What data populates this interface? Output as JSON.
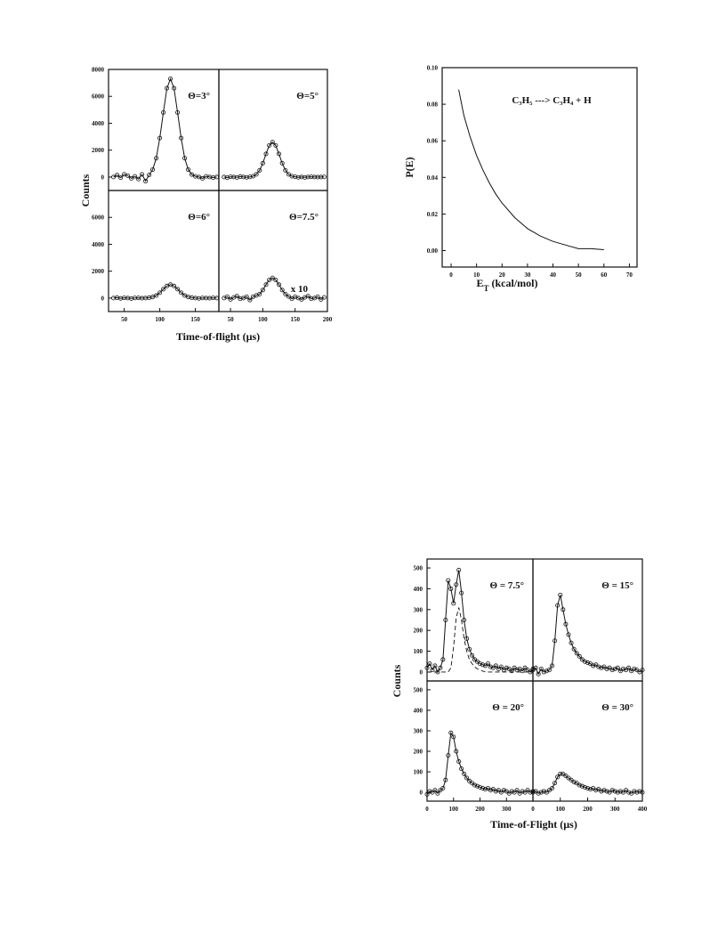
{
  "chart_data": [
    {
      "type": "panels",
      "ylabel": "Counts",
      "xlabel": "Time-of-flight (µs)",
      "panels": [
        {
          "label": "Θ=3°",
          "xlim": [
            28,
            183
          ],
          "ylim": [
            -1000,
            8000
          ],
          "yticks": [
            0,
            2000,
            4000,
            6000,
            8000
          ],
          "x": [
            35,
            40,
            45,
            50,
            55,
            60,
            65,
            70,
            75,
            80,
            85,
            90,
            95,
            100,
            105,
            110,
            115,
            120,
            125,
            130,
            135,
            140,
            145,
            150,
            155,
            160,
            165,
            170,
            175,
            180
          ],
          "series": [
            {
              "markers": true,
              "line": true,
              "values": [
                0,
                150,
                -50,
                200,
                100,
                -100,
                50,
                -150,
                200,
                -300,
                150,
                550,
                1400,
                2900,
                4800,
                6600,
                7300,
                6600,
                4800,
                2900,
                1400,
                550,
                180,
                50,
                0,
                -100,
                50,
                0,
                -50,
                0
              ]
            }
          ]
        },
        {
          "label": "Θ=5°",
          "xlim": [
            32,
            200
          ],
          "ylim": [
            -1000,
            8000
          ],
          "x": [
            40,
            45,
            50,
            55,
            60,
            65,
            70,
            75,
            80,
            85,
            90,
            95,
            100,
            105,
            110,
            115,
            120,
            125,
            130,
            135,
            140,
            145,
            150,
            155,
            160,
            165,
            170,
            175,
            180,
            185,
            190,
            195
          ],
          "series": [
            {
              "markers": true,
              "line": true,
              "values": [
                0,
                -50,
                20,
                0,
                -30,
                30,
                0,
                -20,
                10,
                60,
                200,
                500,
                1030,
                1720,
                2350,
                2600,
                2350,
                1720,
                1030,
                500,
                200,
                60,
                20,
                -20,
                0,
                -30,
                0,
                20,
                0,
                -10,
                0,
                10
              ]
            }
          ]
        },
        {
          "label": "Θ=6°",
          "xlim": [
            28,
            183
          ],
          "ylim": [
            -1000,
            8000
          ],
          "yticks": [
            0,
            2000,
            4000,
            6000
          ],
          "xticks": [
            50,
            100,
            150
          ],
          "x": [
            35,
            40,
            45,
            50,
            55,
            60,
            65,
            70,
            75,
            80,
            85,
            90,
            95,
            100,
            105,
            110,
            115,
            120,
            125,
            130,
            135,
            140,
            145,
            150,
            155,
            160,
            165,
            170,
            175,
            180
          ],
          "series": [
            {
              "markers": true,
              "line": true,
              "values": [
                0,
                30,
                -20,
                20,
                0,
                -30,
                10,
                20,
                -10,
                0,
                30,
                80,
                190,
                400,
                660,
                900,
                1000,
                900,
                660,
                400,
                190,
                80,
                30,
                0,
                -20,
                10,
                0,
                -10,
                20,
                0
              ]
            }
          ]
        },
        {
          "label": "Θ=7.5°",
          "annotation": "x 10",
          "xlim": [
            32,
            200
          ],
          "ylim": [
            -1000,
            8000
          ],
          "xticks": [
            50,
            100,
            150,
            200
          ],
          "x": [
            40,
            45,
            50,
            55,
            60,
            65,
            70,
            75,
            80,
            85,
            90,
            95,
            100,
            105,
            110,
            115,
            120,
            125,
            130,
            135,
            140,
            145,
            150,
            155,
            160,
            165,
            170,
            175,
            180,
            185,
            190,
            195
          ],
          "series": [
            {
              "markers": true,
              "line": true,
              "values": [
                0,
                100,
                -100,
                50,
                150,
                -50,
                0,
                100,
                -150,
                100,
                200,
                300,
                600,
                1000,
                1350,
                1500,
                1350,
                1000,
                600,
                300,
                120,
                -50,
                100,
                0,
                -100,
                50,
                150,
                -50,
                0,
                100,
                -100,
                50
              ]
            }
          ]
        }
      ]
    },
    {
      "type": "line",
      "ylabel": "P(E)",
      "xlabel": [
        "E",
        "T",
        " (kcal/mol)"
      ],
      "annotation": "C₃H₅ ---> C₃H₄ + H",
      "xlim": [
        -3.5,
        73
      ],
      "ylim": [
        -0.009,
        0.1
      ],
      "xticks": [
        0,
        10,
        20,
        30,
        40,
        50,
        60,
        70
      ],
      "yticks": [
        {
          "value": 0,
          "label": "0.00"
        },
        {
          "value": 0.02,
          "label": "0.02"
        },
        {
          "value": 0.04,
          "label": "0.04"
        },
        {
          "value": 0.06,
          "label": "0.06"
        },
        {
          "value": 0.08,
          "label": "0.08"
        },
        {
          "value": 0.1,
          "label": "0.10"
        }
      ],
      "x": [
        3,
        5,
        7.5,
        10,
        12.5,
        15,
        17.5,
        20,
        25,
        30,
        35,
        40,
        45,
        50,
        55,
        60
      ],
      "values": [
        0.088,
        0.074,
        0.062,
        0.052,
        0.044,
        0.037,
        0.031,
        0.026,
        0.018,
        0.012,
        0.008,
        0.005,
        0.003,
        0.001,
        0.001,
        0.0005
      ]
    },
    {
      "type": "panels",
      "ylabel": "Counts",
      "xlabel": "Time-of-Flight (µs)",
      "x": [
        0,
        10,
        20,
        30,
        40,
        50,
        60,
        70,
        80,
        90,
        100,
        110,
        120,
        130,
        140,
        150,
        160,
        170,
        180,
        190,
        200,
        210,
        220,
        230,
        240,
        250,
        260,
        270,
        280,
        290,
        300,
        310,
        320,
        330,
        340,
        350,
        360,
        370,
        380,
        390,
        400
      ],
      "panels": [
        {
          "label": "Θ = 7.5°",
          "xlim": [
            0,
            400
          ],
          "ylim": [
            -43,
            543
          ],
          "yticks": [
            0,
            100,
            200,
            300,
            400,
            500
          ],
          "series": [
            {
              "markers": true,
              "line": true,
              "values": [
                20,
                40,
                10,
                30,
                0,
                20,
                60,
                250,
                440,
                400,
                330,
                420,
                490,
                380,
                250,
                160,
                110,
                80,
                60,
                50,
                40,
                35,
                30,
                40,
                25,
                20,
                30,
                15,
                25,
                10,
                20,
                15,
                5,
                20,
                10,
                15,
                5,
                20,
                10,
                0,
                15
              ]
            },
            {
              "dash": true,
              "values": [
                0,
                0,
                0,
                0,
                0,
                0,
                0,
                0,
                0,
                20,
                120,
                260,
                310,
                250,
                160,
                100,
                60,
                40,
                25,
                15,
                10,
                5,
                0,
                0,
                0,
                0,
                0,
                0,
                0,
                0,
                0,
                0,
                0,
                0,
                0,
                0,
                0,
                0,
                0,
                0,
                0
              ]
            }
          ]
        },
        {
          "label": "Θ = 15°",
          "xlim": [
            0,
            400
          ],
          "ylim": [
            -43,
            543
          ],
          "series": [
            {
              "markers": true,
              "line": true,
              "values": [
                10,
                20,
                -10,
                15,
                0,
                5,
                10,
                30,
                150,
                320,
                370,
                300,
                230,
                180,
                140,
                110,
                90,
                75,
                60,
                50,
                45,
                40,
                30,
                35,
                25,
                20,
                25,
                15,
                20,
                10,
                15,
                20,
                5,
                15,
                10,
                20,
                5,
                15,
                10,
                0,
                10
              ]
            }
          ]
        },
        {
          "label": "Θ = 20°",
          "xlim": [
            0,
            400
          ],
          "ylim": [
            -43,
            543
          ],
          "yticks": [
            0,
            100,
            200,
            300,
            400,
            500
          ],
          "xticks": [
            0,
            100,
            200,
            300
          ],
          "series": [
            {
              "markers": true,
              "line": true,
              "values": [
                -10,
                5,
                0,
                10,
                -5,
                10,
                20,
                60,
                180,
                290,
                270,
                200,
                150,
                115,
                90,
                70,
                55,
                45,
                35,
                30,
                25,
                20,
                15,
                20,
                10,
                15,
                5,
                10,
                0,
                10,
                5,
                -5,
                5,
                0,
                10,
                -5,
                5,
                0,
                10,
                0,
                5
              ]
            }
          ]
        },
        {
          "label": "Θ = 30°",
          "xlim": [
            0,
            400
          ],
          "ylim": [
            -43,
            543
          ],
          "xticks": [
            0,
            100,
            200,
            300,
            400
          ],
          "series": [
            {
              "markers": true,
              "line": true,
              "values": [
                0,
                5,
                -5,
                0,
                5,
                0,
                10,
                20,
                45,
                75,
                90,
                90,
                80,
                70,
                60,
                50,
                45,
                35,
                30,
                25,
                20,
                15,
                20,
                10,
                15,
                5,
                10,
                5,
                0,
                10,
                5,
                0,
                5,
                0,
                10,
                0,
                -5,
                5,
                0,
                5,
                0
              ]
            }
          ]
        }
      ]
    }
  ]
}
